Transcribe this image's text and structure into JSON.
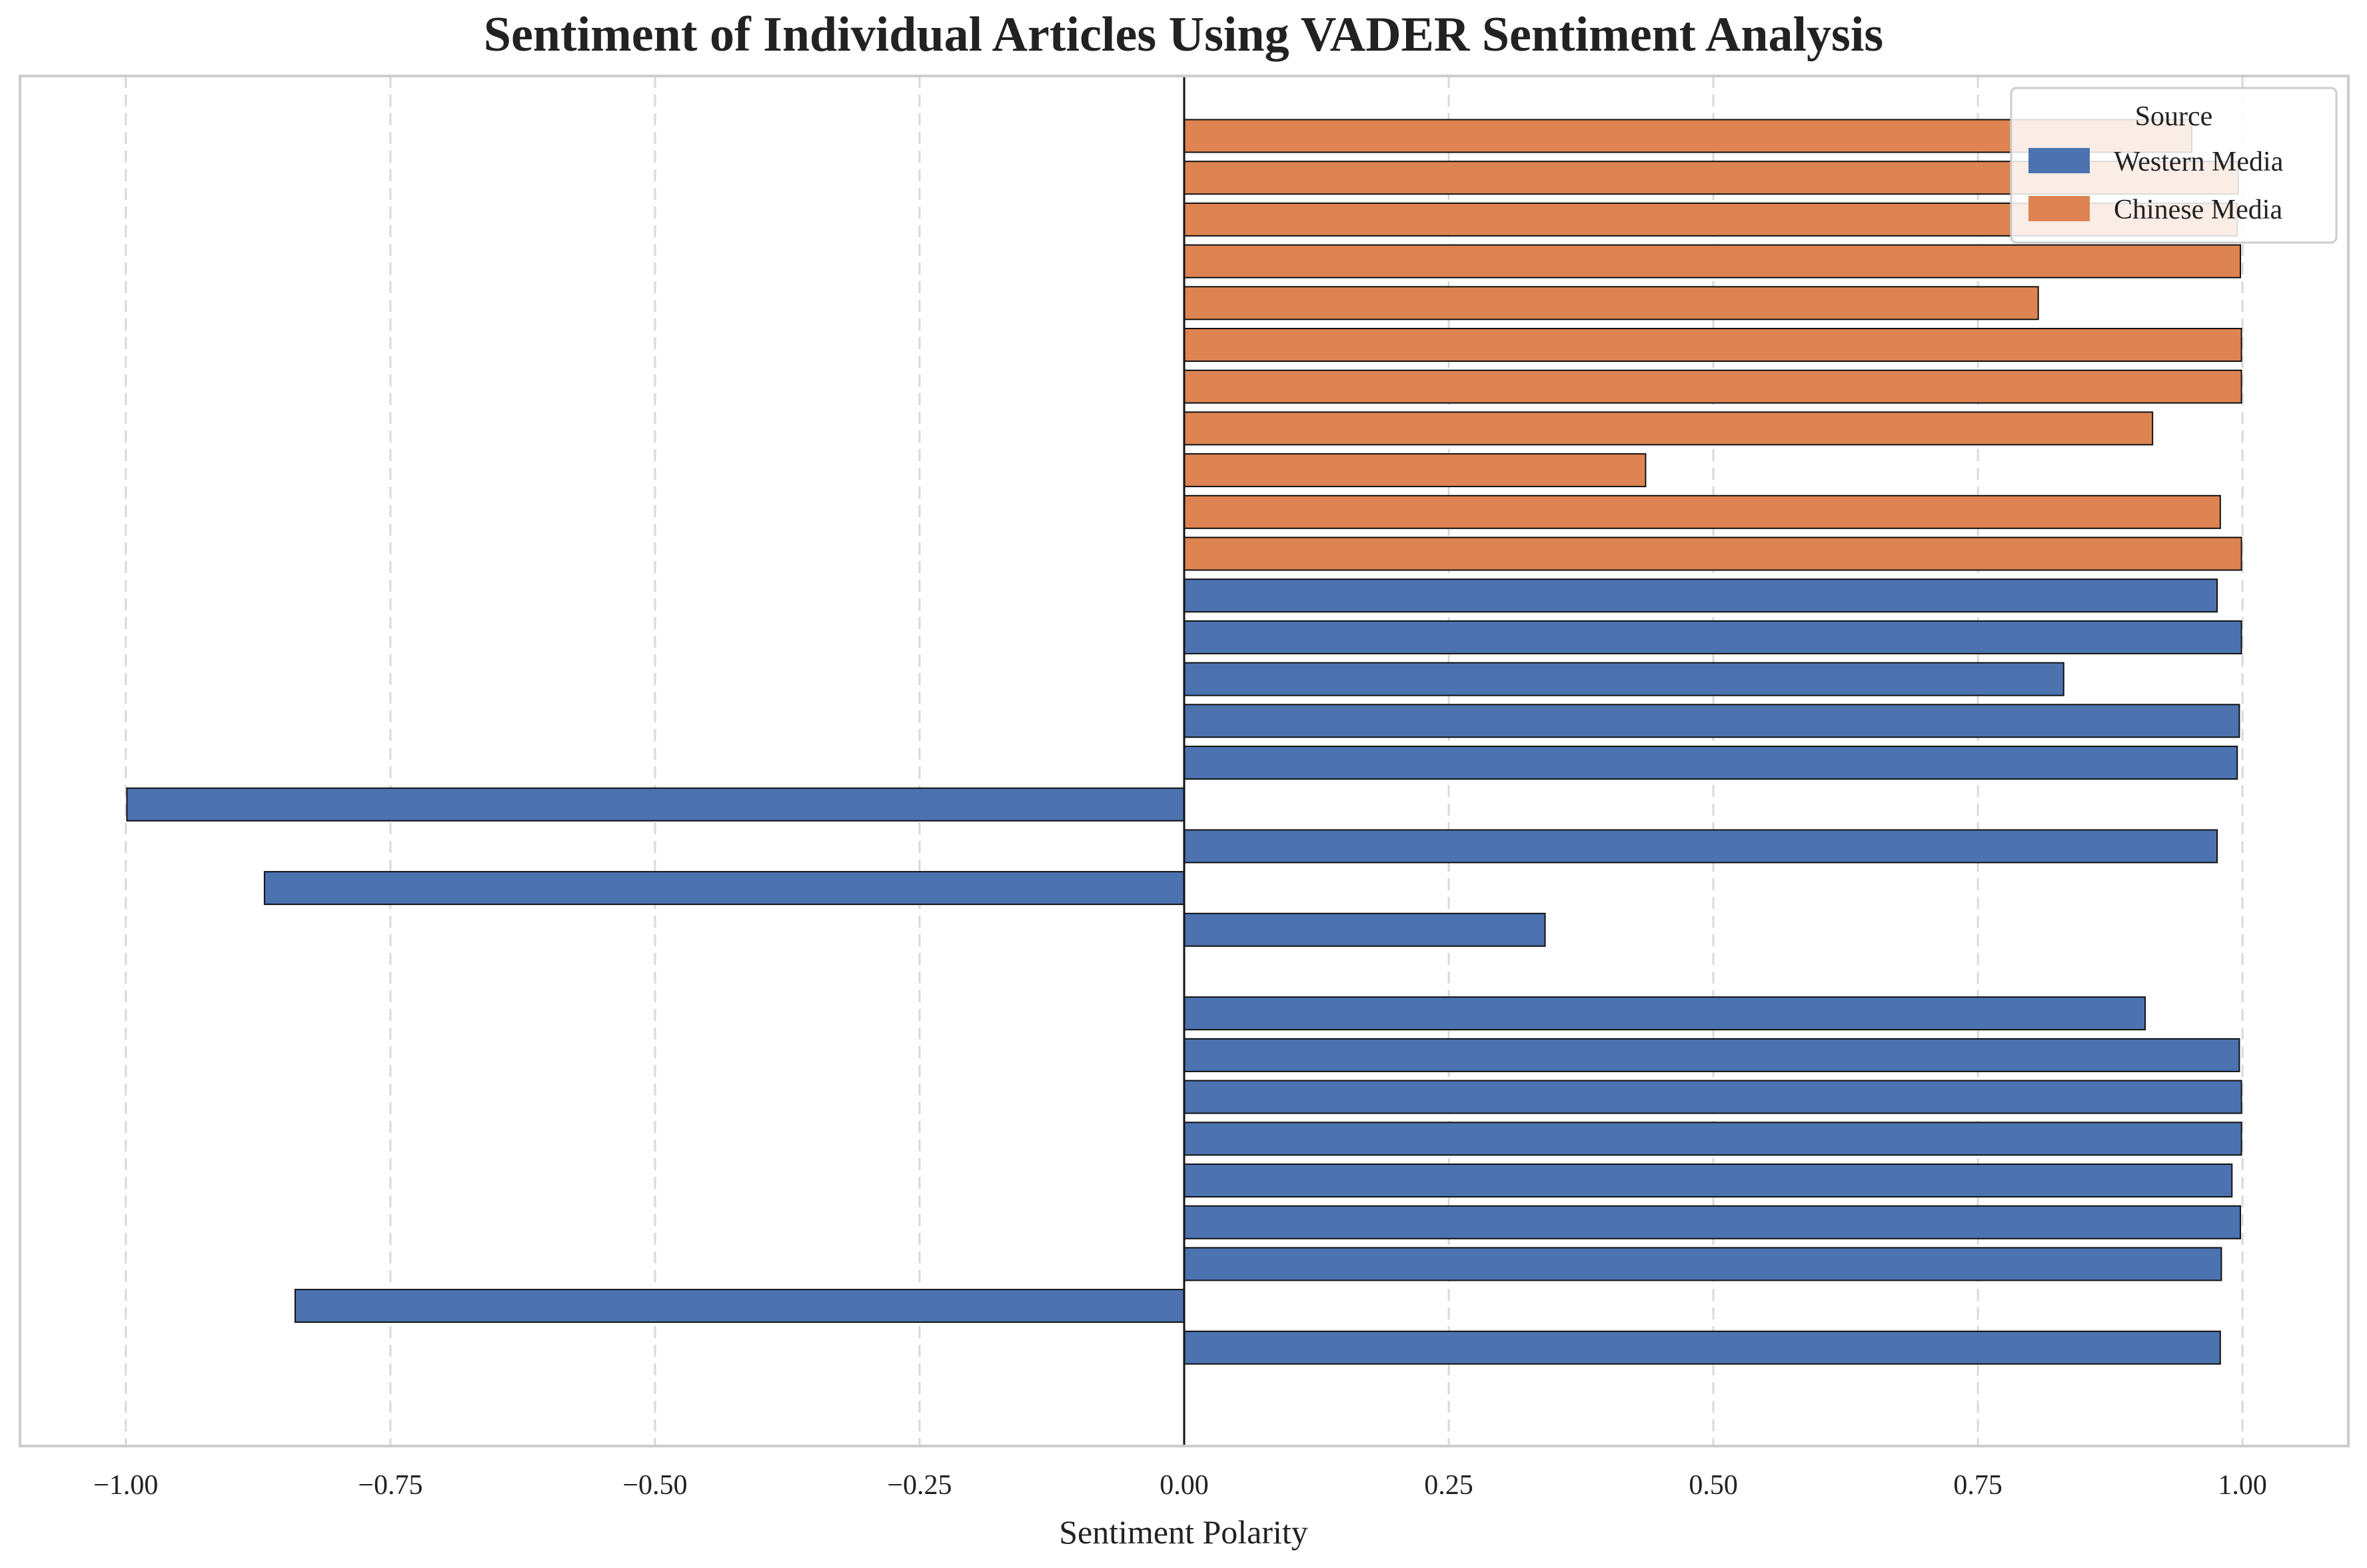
{
  "chart_data": {
    "type": "bar",
    "orientation": "horizontal",
    "title": "Sentiment of Individual Articles Using VADER Sentiment Analysis",
    "xlabel": "Sentiment Polarity",
    "ylabel": "",
    "xlim": [
      -1.1,
      1.1
    ],
    "xticks": [
      -1.0,
      -0.75,
      -0.5,
      -0.25,
      0.0,
      0.25,
      0.5,
      0.75,
      1.0
    ],
    "xtick_labels": [
      "−1.00",
      "−0.75",
      "−0.50",
      "−0.25",
      "0.00",
      "0.25",
      "0.50",
      "0.75",
      "1.00"
    ],
    "grid": "vertical dashed",
    "legend": {
      "title": "Source",
      "placement": "top-right",
      "entries": [
        "Western Media",
        "Chinese Media"
      ]
    },
    "colors": {
      "Western Media": "#4c72b0",
      "Chinese Media": "#dd8452"
    },
    "bars": [
      {
        "source": "Chinese Media",
        "value": 0.952
      },
      {
        "source": "Chinese Media",
        "value": 0.996
      },
      {
        "source": "Chinese Media",
        "value": 0.995
      },
      {
        "source": "Chinese Media",
        "value": 0.998
      },
      {
        "source": "Chinese Media",
        "value": 0.807
      },
      {
        "source": "Chinese Media",
        "value": 0.999
      },
      {
        "source": "Chinese Media",
        "value": 0.999
      },
      {
        "source": "Chinese Media",
        "value": 0.915
      },
      {
        "source": "Chinese Media",
        "value": 0.436
      },
      {
        "source": "Chinese Media",
        "value": 0.979
      },
      {
        "source": "Chinese Media",
        "value": 0.999
      },
      {
        "source": "Western Media",
        "value": 0.976
      },
      {
        "source": "Western Media",
        "value": 0.999
      },
      {
        "source": "Western Media",
        "value": 0.831
      },
      {
        "source": "Western Media",
        "value": 0.997
      },
      {
        "source": "Western Media",
        "value": 0.995
      },
      {
        "source": "Western Media",
        "value": -0.999
      },
      {
        "source": "Western Media",
        "value": 0.976
      },
      {
        "source": "Western Media",
        "value": -0.869
      },
      {
        "source": "Western Media",
        "value": 0.341
      },
      {
        "source": "Western Media",
        "value": 0.0
      },
      {
        "source": "Western Media",
        "value": 0.908
      },
      {
        "source": "Western Media",
        "value": 0.997
      },
      {
        "source": "Western Media",
        "value": 0.999
      },
      {
        "source": "Western Media",
        "value": 0.999
      },
      {
        "source": "Western Media",
        "value": 0.99
      },
      {
        "source": "Western Media",
        "value": 0.998
      },
      {
        "source": "Western Media",
        "value": 0.98
      },
      {
        "source": "Western Media",
        "value": -0.84
      },
      {
        "source": "Western Media",
        "value": 0.979
      }
    ]
  }
}
